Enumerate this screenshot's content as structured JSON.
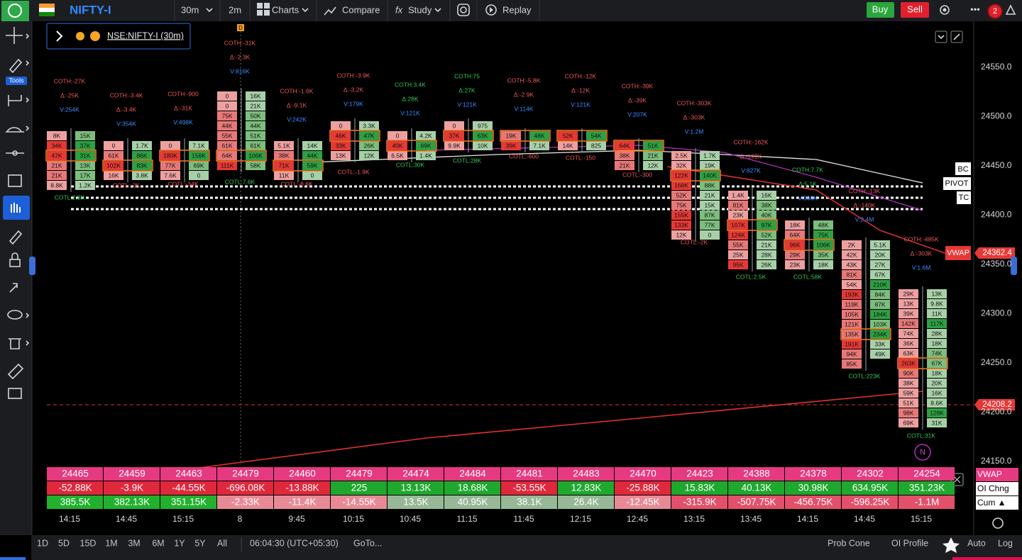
{
  "toolbar": {
    "symbol": "NIFTY-I",
    "interval": "30m",
    "sub_interval": "2m",
    "charts": "Charts",
    "compare": "Compare",
    "study": "Study",
    "replay": "Replay",
    "buy": "Buy",
    "sell": "Sell",
    "notifications": "2"
  },
  "sidebar": {
    "tools": "Tools"
  },
  "legend": {
    "symbol": "NSE:NIFTY-I (30m)",
    "marker": "D"
  },
  "price_axis": [
    "24550.0",
    "24500.0",
    "24450.0",
    "24400.0",
    "24350.0",
    "24300.0",
    "24250.0",
    "24200.0",
    "24150.0"
  ],
  "price_markers": {
    "vwap_label": "VWAP",
    "vwap": "24362.4",
    "last": "24208.2"
  },
  "pivot_labels": [
    "BC",
    "PIVOT",
    "TC"
  ],
  "candles": [
    {
      "coth": "COTH:-27K",
      "delta": "Δ:-25K",
      "vol": "V:254K",
      "cotl": "COTL:2.8K",
      "bid": [
        "8K",
        "34K",
        "47K",
        "21K",
        "21K",
        "8.8K"
      ],
      "ask": [
        "15K",
        "37K",
        "31K",
        "13K",
        "17K",
        "1.2K"
      ]
    },
    {
      "coth": "COTH:-3.4K",
      "delta": "Δ:-3.4K",
      "vol": "V:354K",
      "cotl": "COTL:-2K",
      "bid": [
        "0",
        "61K",
        "102K",
        "16K"
      ],
      "ask": [
        "1.7K",
        "86K",
        "83K",
        "3.8K"
      ]
    },
    {
      "coth": "COTH:-900",
      "delta": "Δ:-31K",
      "vol": "V:498K",
      "cotl": "COTL:-34K",
      "bid": [
        "0",
        "180K",
        "77K",
        "7.6K"
      ],
      "ask": [
        "7.1K",
        "158K",
        "69K",
        "0"
      ]
    },
    {
      "coth": "COTH:-31K",
      "delta": "Δ:-2.3K",
      "vol": "V:816K",
      "cotl": "COTL:7.6K",
      "bid": [
        "0",
        "0",
        "75K",
        "44K",
        "55K",
        "61K",
        "64K",
        "111K"
      ],
      "ask": [
        "16K",
        "21K",
        "50K",
        "44K",
        "51K",
        "61K",
        "106K",
        "58K"
      ]
    },
    {
      "coth": "COTH:-1.6K",
      "delta": "Δ:-9.1K",
      "vol": "V:242K",
      "cotl": "COTL:-8.6K",
      "bid": [
        "5.1K",
        "38K",
        "71K",
        "11K"
      ],
      "ask": [
        "14K",
        "44K",
        "59K",
        "0"
      ]
    },
    {
      "coth": "COTH:-3.9K",
      "delta": "Δ:-3.2K",
      "vol": "V:179K",
      "cotl": "COTL:-1.9K",
      "bid": [
        "0",
        "46K",
        "33K",
        "13K"
      ],
      "ask": [
        "3.3K",
        "47K",
        "26K",
        "12K"
      ]
    },
    {
      "coth": "COTH:3.4K",
      "delta": "Δ:28K",
      "vol": "V:121K",
      "cotl": "COTL:30K",
      "bid": [
        "0",
        "40K",
        "6.5K"
      ],
      "ask": [
        "4.2K",
        "69K",
        "1.4K"
      ]
    },
    {
      "coth": "COTH:75",
      "delta": "Δ:27K",
      "vol": "V:121K",
      "cotl": "COTL:28K",
      "bid": [
        "0",
        "37K",
        "9.9K"
      ],
      "ask": [
        "975",
        "63K",
        "10K"
      ]
    },
    {
      "coth": "COTH:-5.8K",
      "delta": "Δ:-2.9K",
      "vol": "V:114K",
      "cotl": "COTL:-600",
      "bid": [
        "19K",
        "39K"
      ],
      "ask": [
        "48K",
        "7.1K"
      ]
    },
    {
      "coth": "COTH:-12K",
      "delta": "Δ:-12K",
      "vol": "V:121K",
      "cotl": "COTL:-150",
      "bid": [
        "52K",
        "14K"
      ],
      "ask": [
        "54K",
        "825"
      ]
    },
    {
      "coth": "COTH:-39K",
      "delta": "Δ:-39K",
      "vol": "V:207K",
      "cotl": "COTL:-300",
      "bid": [
        "64K",
        "38K",
        "21K"
      ],
      "ask": [
        "51K",
        "21K",
        "12K"
      ]
    },
    {
      "coth": "COTH:-303K",
      "delta": "Δ:-303K",
      "vol": "V:1.2M",
      "cotl": "COTL:-2K",
      "bid": [
        "2.5K",
        "32K",
        "122K",
        "168K",
        "52K",
        "75K",
        "155K",
        "133K",
        "12K"
      ],
      "ask": [
        "1.7K",
        "19K",
        "140K",
        "88K",
        "21K",
        "15K",
        "87K",
        "77K",
        "0"
      ]
    },
    {
      "coth": "COTH:-162K",
      "delta": "Δ:-192K",
      "vol": "V:827K",
      "cotl": "COTL:2.5K",
      "bid": [
        "1.4K",
        "81K",
        "23K",
        "107K",
        "124K",
        "55K",
        "25K",
        "95K"
      ],
      "ask": [
        "16K",
        "38K",
        "40K",
        "97K",
        "52K",
        "21K",
        "28K",
        "26K"
      ]
    },
    {
      "coth": "COTH:7.7K",
      "delta": "Δ:5.1K",
      "vol": "V:360K",
      "cotl": "COTL:58K",
      "bid": [
        "18K",
        "64K",
        "96K",
        "29K",
        "23K"
      ],
      "ask": [
        "48K",
        "75K",
        "106K",
        "35K",
        "18K"
      ]
    },
    {
      "coth": "COTH:-13K",
      "delta": "Δ:-140K",
      "vol": "V:2.4M",
      "cotl": "COTL:223K",
      "bid": [
        "2K",
        "42K",
        "43K",
        "81K",
        "54K",
        "193K",
        "119K",
        "105K",
        "121K",
        "135K",
        "191K",
        "94K",
        "85K"
      ],
      "ask": [
        "5.1K",
        "20K",
        "27K",
        "67K",
        "210K",
        "84K",
        "87K",
        "184K",
        "103K",
        "234K",
        "33K",
        "49K"
      ]
    },
    {
      "coth": "COTH:-485K",
      "delta": "Δ:-303K",
      "vol": "V:1.6M",
      "cotl": "COTL:31K",
      "bid": [
        "29K",
        "13K",
        "39K",
        "142K",
        "74K",
        "36K",
        "63K",
        "263K",
        "90K",
        "38K",
        "59K",
        "51K",
        "98K",
        "69K"
      ],
      "ask": [
        "13K",
        "9.8K",
        "11K",
        "117K",
        "28K",
        "18K",
        "74K",
        "67K",
        "18K",
        "20K",
        "16K",
        "8.6K",
        "128K",
        "31K"
      ]
    }
  ],
  "session_marker": "N",
  "table": {
    "row_labels": [
      "VWAP",
      "OI Chng",
      "Cum ▲"
    ],
    "rows": [
      [
        "24465",
        "24459",
        "24463",
        "24479",
        "24460",
        "24479",
        "24474",
        "24484",
        "24481",
        "24483",
        "24470",
        "24423",
        "24388",
        "24378",
        "24302",
        "24254"
      ],
      [
        "-52.88K",
        "-3.9K",
        "-44.55K",
        "-696.08K",
        "-13.88K",
        "225",
        "13.13K",
        "18.68K",
        "-53.55K",
        "12.83K",
        "-25.88K",
        "15.83K",
        "40.13K",
        "30.98K",
        "634.95K",
        "351.23K"
      ],
      [
        "385.5K",
        "382.13K",
        "351.15K",
        "-2.33K",
        "-11.4K",
        "-14.55K",
        "13.5K",
        "40.95K",
        "38.1K",
        "26.4K",
        "-12.45K",
        "-315.9K",
        "-507.75K",
        "-456.75K",
        "-596.25K",
        "-1.1M"
      ]
    ]
  },
  "time_axis": [
    "14:15",
    "14:45",
    "15:15",
    "8",
    "9:45",
    "10:15",
    "10:45",
    "11:15",
    "11:45",
    "12:15",
    "12:45",
    "13:15",
    "13:45",
    "14:15",
    "14:45",
    "15:15"
  ],
  "footer": {
    "ranges": [
      "1D",
      "5D",
      "15D",
      "1M",
      "3M",
      "6M",
      "1Y",
      "5Y",
      "All"
    ],
    "clock": "06:04:30 (UTC+05:30)",
    "goto": "GoTo...",
    "prob_cone": "Prob Cone",
    "oi_profile": "OI Profile",
    "auto": "Auto",
    "log": "Log"
  }
}
